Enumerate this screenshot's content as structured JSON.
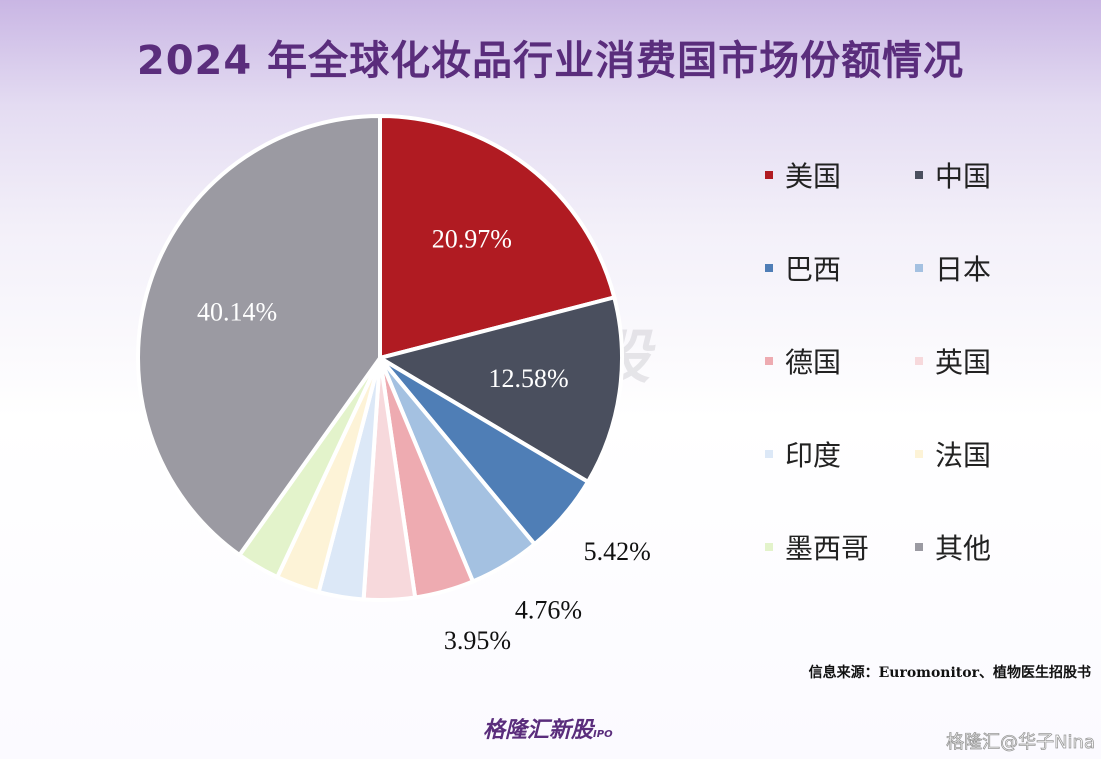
{
  "chart_data": {
    "type": "pie",
    "title": "2024 年全球化妆品行业消费国市场份额情况",
    "categories": [
      "美国",
      "中国",
      "巴西",
      "日本",
      "德国",
      "英国",
      "印度",
      "法国",
      "墨西哥",
      "其他"
    ],
    "values": [
      20.97,
      12.58,
      5.42,
      4.76,
      3.95,
      3.4,
      3.0,
      2.9,
      2.88,
      40.14
    ],
    "labels": [
      "20.97%",
      "12.58%",
      "5.42%",
      "4.76%",
      "3.95%",
      "",
      "",
      "",
      "",
      "40.14%"
    ],
    "colors": [
      "#b01b22",
      "#4a4f5e",
      "#4f7eb6",
      "#a4c1e1",
      "#eeabb1",
      "#f7d9dc",
      "#dce8f7",
      "#fdf3d7",
      "#e3f3cb",
      "#9b9aa2"
    ],
    "legend_position": "right"
  },
  "source": "信息来源：Euromonitor、植物医生招股书",
  "watermark": "格隆汇新股 IPO",
  "logo": "格隆汇新股 IPO",
  "credit": "格隆汇@华子Nina"
}
